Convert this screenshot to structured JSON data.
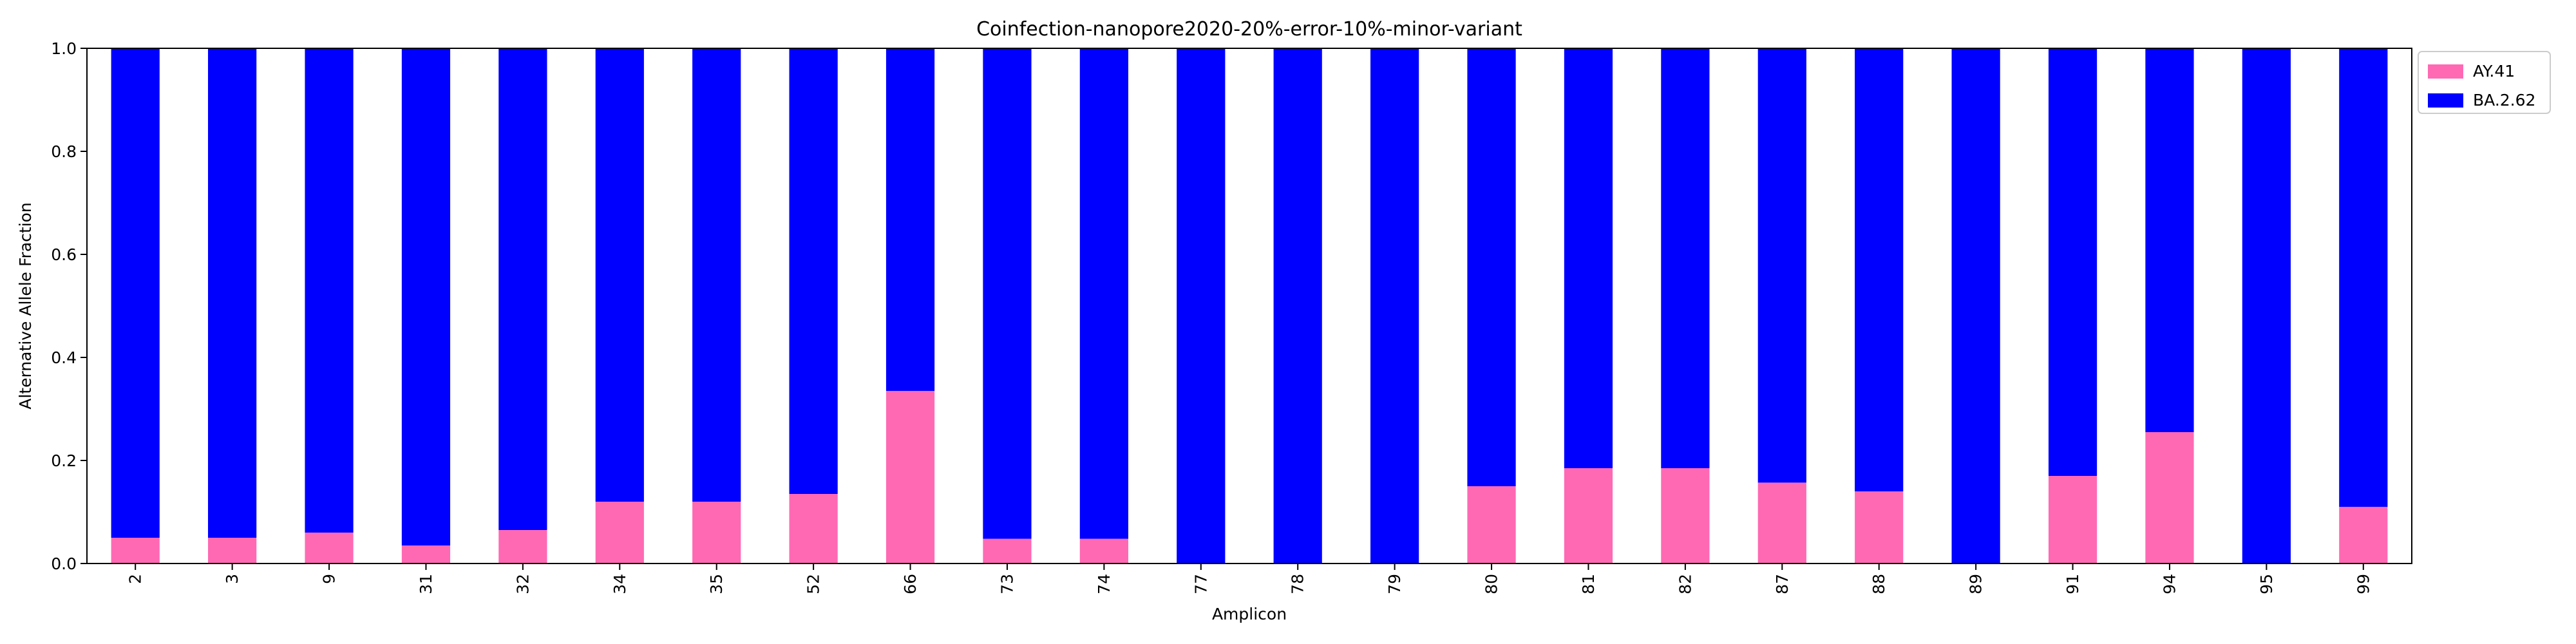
{
  "chart_data": {
    "type": "bar",
    "stacked": true,
    "title": "Coinfection-nanopore2020-20%-error-10%-minor-variant",
    "xlabel": "Amplicon",
    "ylabel": "Alternative Allele Fraction",
    "ylim": [
      0,
      1.0
    ],
    "yticks": [
      "0.0",
      "0.2",
      "0.4",
      "0.6",
      "0.8",
      "1.0"
    ],
    "grid": false,
    "legend_position": "outside top-right",
    "categories": [
      "2",
      "3",
      "9",
      "31",
      "32",
      "34",
      "35",
      "52",
      "66",
      "73",
      "74",
      "77",
      "78",
      "79",
      "80",
      "81",
      "82",
      "87",
      "88",
      "89",
      "91",
      "94",
      "95",
      "99"
    ],
    "series": [
      {
        "name": "AY.41",
        "color": "#ff69b4",
        "values": [
          0.05,
          0.05,
          0.06,
          0.035,
          0.065,
          0.12,
          0.12,
          0.135,
          0.335,
          0.048,
          0.048,
          0.0,
          0.0,
          0.0,
          0.15,
          0.185,
          0.185,
          0.157,
          0.14,
          0.0,
          0.17,
          0.255,
          0.0,
          0.11
        ]
      },
      {
        "name": "BA.2.62",
        "color": "#0000ff",
        "values": [
          0.95,
          0.95,
          0.94,
          0.965,
          0.935,
          0.88,
          0.88,
          0.865,
          0.665,
          0.952,
          0.952,
          1.0,
          1.0,
          1.0,
          0.85,
          0.815,
          0.815,
          0.843,
          0.86,
          1.0,
          0.83,
          0.745,
          1.0,
          0.89
        ]
      }
    ]
  }
}
